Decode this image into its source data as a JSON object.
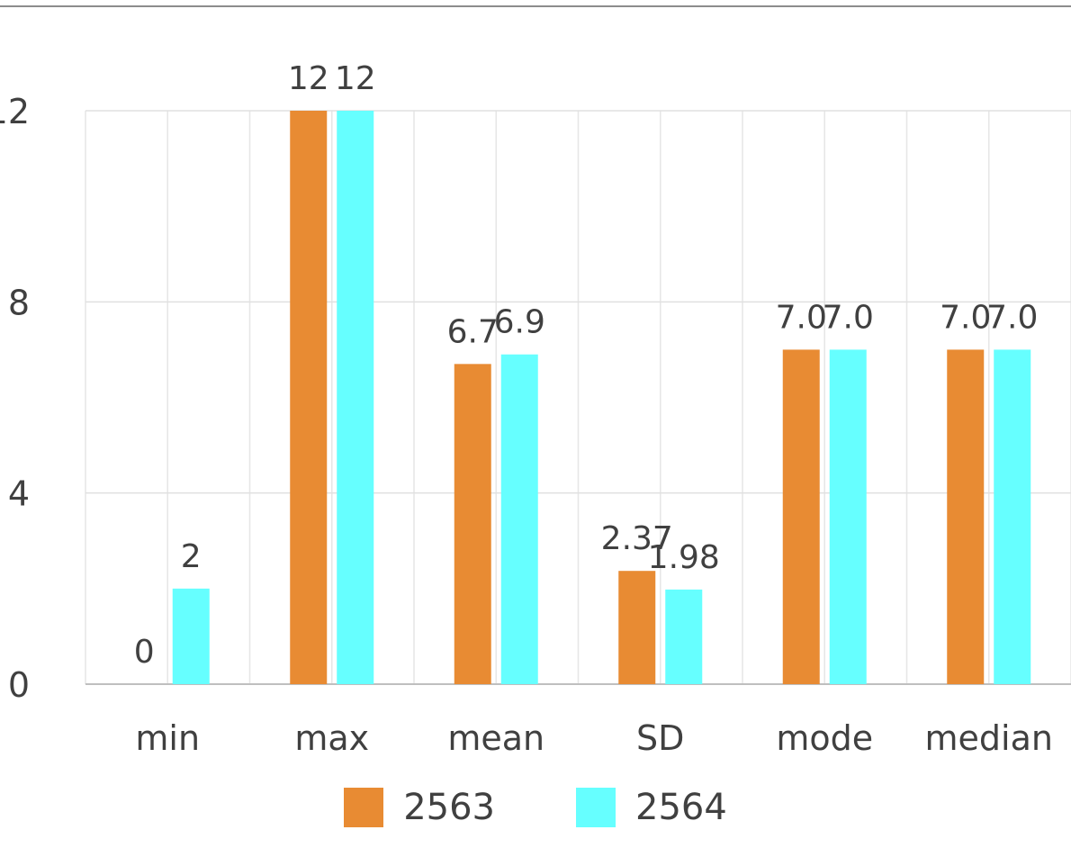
{
  "chart_data": {
    "type": "bar",
    "title": "",
    "xlabel": "",
    "ylabel": "",
    "categories": [
      "min",
      "max",
      "mean",
      "SD",
      "mode",
      "median"
    ],
    "series": [
      {
        "name": "2563",
        "color": "#E88B33",
        "values": [
          0,
          12,
          6.7,
          2.37,
          7.0,
          7.0
        ],
        "labels": [
          "0",
          "12",
          "6.7",
          "2.37",
          "7.0",
          "7.0"
        ]
      },
      {
        "name": "2564",
        "color": "#66FFFF",
        "values": [
          2,
          12,
          6.9,
          1.98,
          7.0,
          7.0
        ],
        "labels": [
          "2",
          "12",
          "6.9",
          "1.98",
          "7.0",
          "7.0"
        ]
      }
    ],
    "y_ticks": [
      "0",
      "4",
      "8",
      "12"
    ],
    "ylim": [
      0,
      12
    ],
    "grid": true,
    "legend_position": "bottom"
  }
}
